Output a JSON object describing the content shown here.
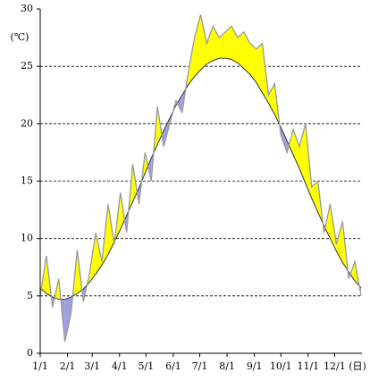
{
  "chart_data": {
    "type": "line",
    "y_unit": "(℃)",
    "x_unit": "(日)",
    "x": [
      0,
      7,
      14,
      21,
      28,
      35,
      42,
      49,
      56,
      63,
      70,
      77,
      84,
      91,
      98,
      105,
      112,
      119,
      126,
      133,
      140,
      147,
      154,
      161,
      168,
      175,
      182,
      189,
      196,
      203,
      210,
      217,
      224,
      231,
      238,
      245,
      252,
      259,
      266,
      273,
      280,
      287,
      294,
      301,
      308,
      315,
      322,
      329,
      336,
      343,
      350,
      357,
      364
    ],
    "xlim": [
      0,
      365
    ],
    "xticks": [
      {
        "value": 0,
        "label": "1/1"
      },
      {
        "value": 31,
        "label": "2/1"
      },
      {
        "value": 59,
        "label": "3/1"
      },
      {
        "value": 90,
        "label": "4/1"
      },
      {
        "value": 120,
        "label": "5/1"
      },
      {
        "value": 151,
        "label": "6/1"
      },
      {
        "value": 181,
        "label": "7/1"
      },
      {
        "value": 212,
        "label": "8/1"
      },
      {
        "value": 243,
        "label": "9/1"
      },
      {
        "value": 273,
        "label": "10/1"
      },
      {
        "value": 304,
        "label": "11/1"
      },
      {
        "value": 334,
        "label": "12/1"
      }
    ],
    "ylim": [
      0,
      30
    ],
    "yticks": [
      0,
      5,
      10,
      15,
      20,
      25,
      30
    ],
    "grid": true,
    "fill_above_color": "#ffff00",
    "fill_below_color": "#9f9fe0",
    "series": [
      {
        "color": "#999999",
        "values": [
          5.0,
          8.5,
          4.0,
          6.5,
          1.0,
          3.5,
          9.0,
          4.5,
          7.0,
          10.5,
          8.0,
          13.0,
          9.5,
          14.0,
          10.5,
          16.5,
          13.0,
          17.5,
          15.0,
          21.5,
          18.0,
          20.0,
          22.0,
          21.0,
          24.5,
          27.5,
          29.5,
          27.0,
          28.5,
          27.5,
          28.0,
          28.5,
          27.5,
          28.0,
          27.0,
          26.5,
          27.0,
          22.5,
          23.5,
          19.0,
          17.5,
          19.5,
          18.0,
          20.0,
          14.5,
          15.0,
          10.5,
          13.0,
          9.5,
          11.5,
          6.5,
          8.0,
          5.0
        ]
      },
      {
        "color": "#333333",
        "values": [
          5.7,
          5.2,
          4.9,
          4.7,
          4.7,
          4.9,
          5.2,
          5.6,
          6.2,
          6.9,
          7.7,
          8.6,
          9.7,
          10.8,
          12.0,
          13.2,
          14.4,
          15.7,
          17.0,
          18.2,
          19.4,
          20.5,
          21.6,
          22.5,
          23.4,
          24.1,
          24.7,
          25.2,
          25.5,
          25.7,
          25.7,
          25.6,
          25.3,
          24.8,
          24.3,
          23.6,
          22.7,
          21.8,
          20.8,
          19.7,
          18.5,
          17.3,
          16.1,
          14.8,
          13.5,
          12.3,
          11.1,
          10.0,
          8.9,
          7.9,
          7.1,
          6.3,
          5.7
        ]
      }
    ]
  }
}
